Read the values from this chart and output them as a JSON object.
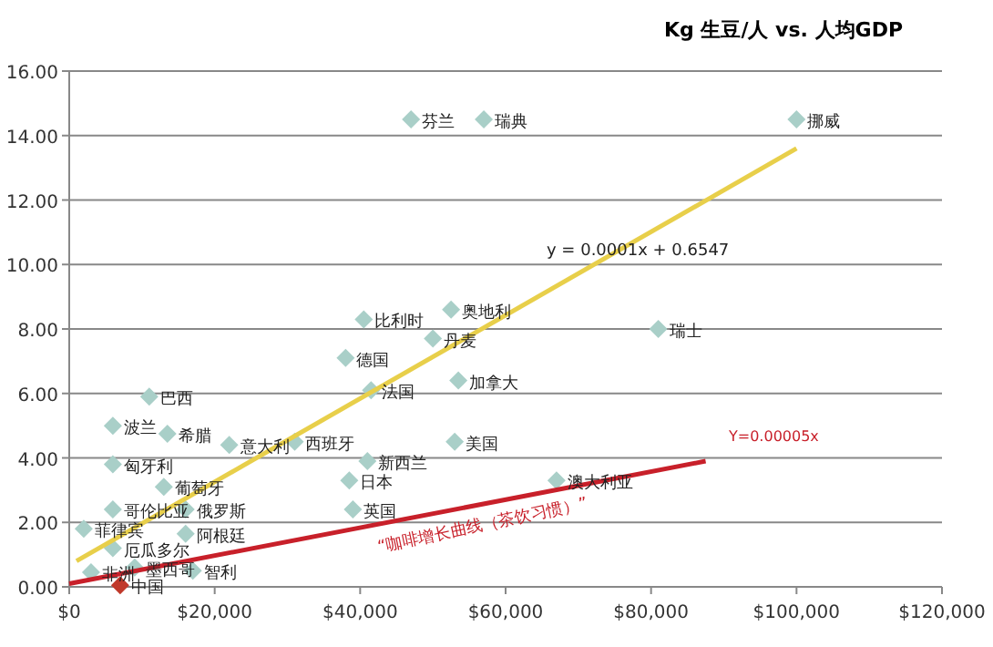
{
  "chart_data": {
    "type": "scatter",
    "title": "Kg 生豆/人 vs. 人均GDP",
    "xlim": [
      0,
      120000
    ],
    "xticks": [
      {
        "value": 0,
        "label": "$0"
      },
      {
        "value": 20000,
        "label": "$20,000"
      },
      {
        "value": 40000,
        "label": "$40,000"
      },
      {
        "value": 60000,
        "label": "$60,000"
      },
      {
        "value": 80000,
        "label": "$80,000"
      },
      {
        "value": 100000,
        "label": "$100,000"
      },
      {
        "value": 120000,
        "label": "$120,000"
      }
    ],
    "ylim": [
      0,
      16
    ],
    "yticks": [
      {
        "value": 0,
        "label": "0.00"
      },
      {
        "value": 2,
        "label": "2.00"
      },
      {
        "value": 4,
        "label": "4.00"
      },
      {
        "value": 6,
        "label": "6.00"
      },
      {
        "value": 8,
        "label": "8.00"
      },
      {
        "value": 10,
        "label": "10.00"
      },
      {
        "value": 12,
        "label": "12.00"
      },
      {
        "value": 14,
        "label": "14.00"
      },
      {
        "value": 16,
        "label": "16.00"
      }
    ],
    "grid": "y",
    "series": [
      {
        "marker": "diamond",
        "x": [
          47000,
          57000,
          100000,
          40500,
          52500,
          50000,
          38000,
          81000,
          53500,
          41500,
          11000,
          6000,
          13500,
          22000,
          31000,
          6000,
          13000,
          6000,
          16000,
          2000,
          16000,
          6000,
          17000,
          9000,
          3000,
          7000,
          38500,
          41000,
          39000,
          53000,
          67000
        ],
        "values": [
          14.5,
          14.5,
          14.5,
          8.3,
          8.6,
          7.7,
          7.1,
          8.0,
          6.4,
          6.1,
          5.9,
          5.0,
          4.75,
          4.4,
          4.5,
          3.8,
          3.1,
          2.4,
          2.4,
          1.8,
          1.65,
          1.2,
          0.5,
          0.6,
          0.45,
          0.05,
          3.3,
          3.9,
          2.4,
          4.5,
          3.3
        ],
        "colors": [
          "#a9cfc8",
          "#a9cfc8",
          "#a9cfc8",
          "#a9cfc8",
          "#a9cfc8",
          "#a9cfc8",
          "#a9cfc8",
          "#a9cfc8",
          "#a9cfc8",
          "#a9cfc8",
          "#a9cfc8",
          "#a9cfc8",
          "#a9cfc8",
          "#a9cfc8",
          "#a9cfc8",
          "#a9cfc8",
          "#a9cfc8",
          "#a9cfc8",
          "#a9cfc8",
          "#a9cfc8",
          "#a9cfc8",
          "#a9cfc8",
          "#a9cfc8",
          "#a9cfc8",
          "#a9cfc8",
          "#c0392b",
          "#a9cfc8",
          "#a9cfc8",
          "#a9cfc8",
          "#a9cfc8",
          "#a9cfc8"
        ]
      },
      {
        "type": "line",
        "color": "#e8cf4a",
        "x": [
          1000,
          100000
        ],
        "values": [
          0.8,
          13.6
        ]
      },
      {
        "type": "line",
        "color": "#c8202a",
        "x": [
          0,
          87500
        ],
        "values": [
          0.1,
          3.9
        ]
      }
    ],
    "annotations": [
      {
        "text": "芬兰",
        "x": 47000,
        "y": 14.5
      },
      {
        "text": "瑞典",
        "x": 57000,
        "y": 14.5
      },
      {
        "text": "挪威",
        "x": 100000,
        "y": 14.5
      },
      {
        "text": "比利时",
        "x": 40500,
        "y": 8.3
      },
      {
        "text": "奥地利",
        "x": 52500,
        "y": 8.6
      },
      {
        "text": "丹麦",
        "x": 50000,
        "y": 7.7
      },
      {
        "text": "德国",
        "x": 38000,
        "y": 7.1
      },
      {
        "text": "瑞士",
        "x": 81000,
        "y": 8.0
      },
      {
        "text": "加拿大",
        "x": 53500,
        "y": 6.4
      },
      {
        "text": "法国",
        "x": 41500,
        "y": 6.1
      },
      {
        "text": "巴西",
        "x": 11000,
        "y": 5.9
      },
      {
        "text": "波兰",
        "x": 6000,
        "y": 5.0
      },
      {
        "text": "希腊",
        "x": 13500,
        "y": 4.75
      },
      {
        "text": "意大利",
        "x": 22000,
        "y": 4.4
      },
      {
        "text": "西班牙",
        "x": 31000,
        "y": 4.5
      },
      {
        "text": "匈牙利",
        "x": 6000,
        "y": 3.8
      },
      {
        "text": "葡萄牙",
        "x": 13000,
        "y": 3.1
      },
      {
        "text": "哥伦比亚",
        "x": 6000,
        "y": 2.4
      },
      {
        "text": "俄罗斯",
        "x": 16000,
        "y": 2.4
      },
      {
        "text": "菲律宾",
        "x": 2000,
        "y": 1.8
      },
      {
        "text": "阿根廷",
        "x": 16000,
        "y": 1.65
      },
      {
        "text": "厄瓜多尔",
        "x": 6000,
        "y": 1.2
      },
      {
        "text": "智利",
        "x": 17000,
        "y": 0.5
      },
      {
        "text": "墨西哥",
        "x": 9000,
        "y": 0.6
      },
      {
        "text": "非洲",
        "x": 3000,
        "y": 0.45
      },
      {
        "text": "中国",
        "x": 7000,
        "y": 0.05
      },
      {
        "text": "日本",
        "x": 38500,
        "y": 3.3
      },
      {
        "text": "新西兰",
        "x": 41000,
        "y": 3.9
      },
      {
        "text": "英国",
        "x": 39000,
        "y": 2.4
      },
      {
        "text": "美国",
        "x": 53000,
        "y": 4.5
      },
      {
        "text": "澳大利亚",
        "x": 67000,
        "y": 3.3
      },
      "y = 0.0001x + 0.6547",
      "“咖啡增长曲线（茶饮习惯）”",
      "Y=0.00005x"
    ]
  }
}
